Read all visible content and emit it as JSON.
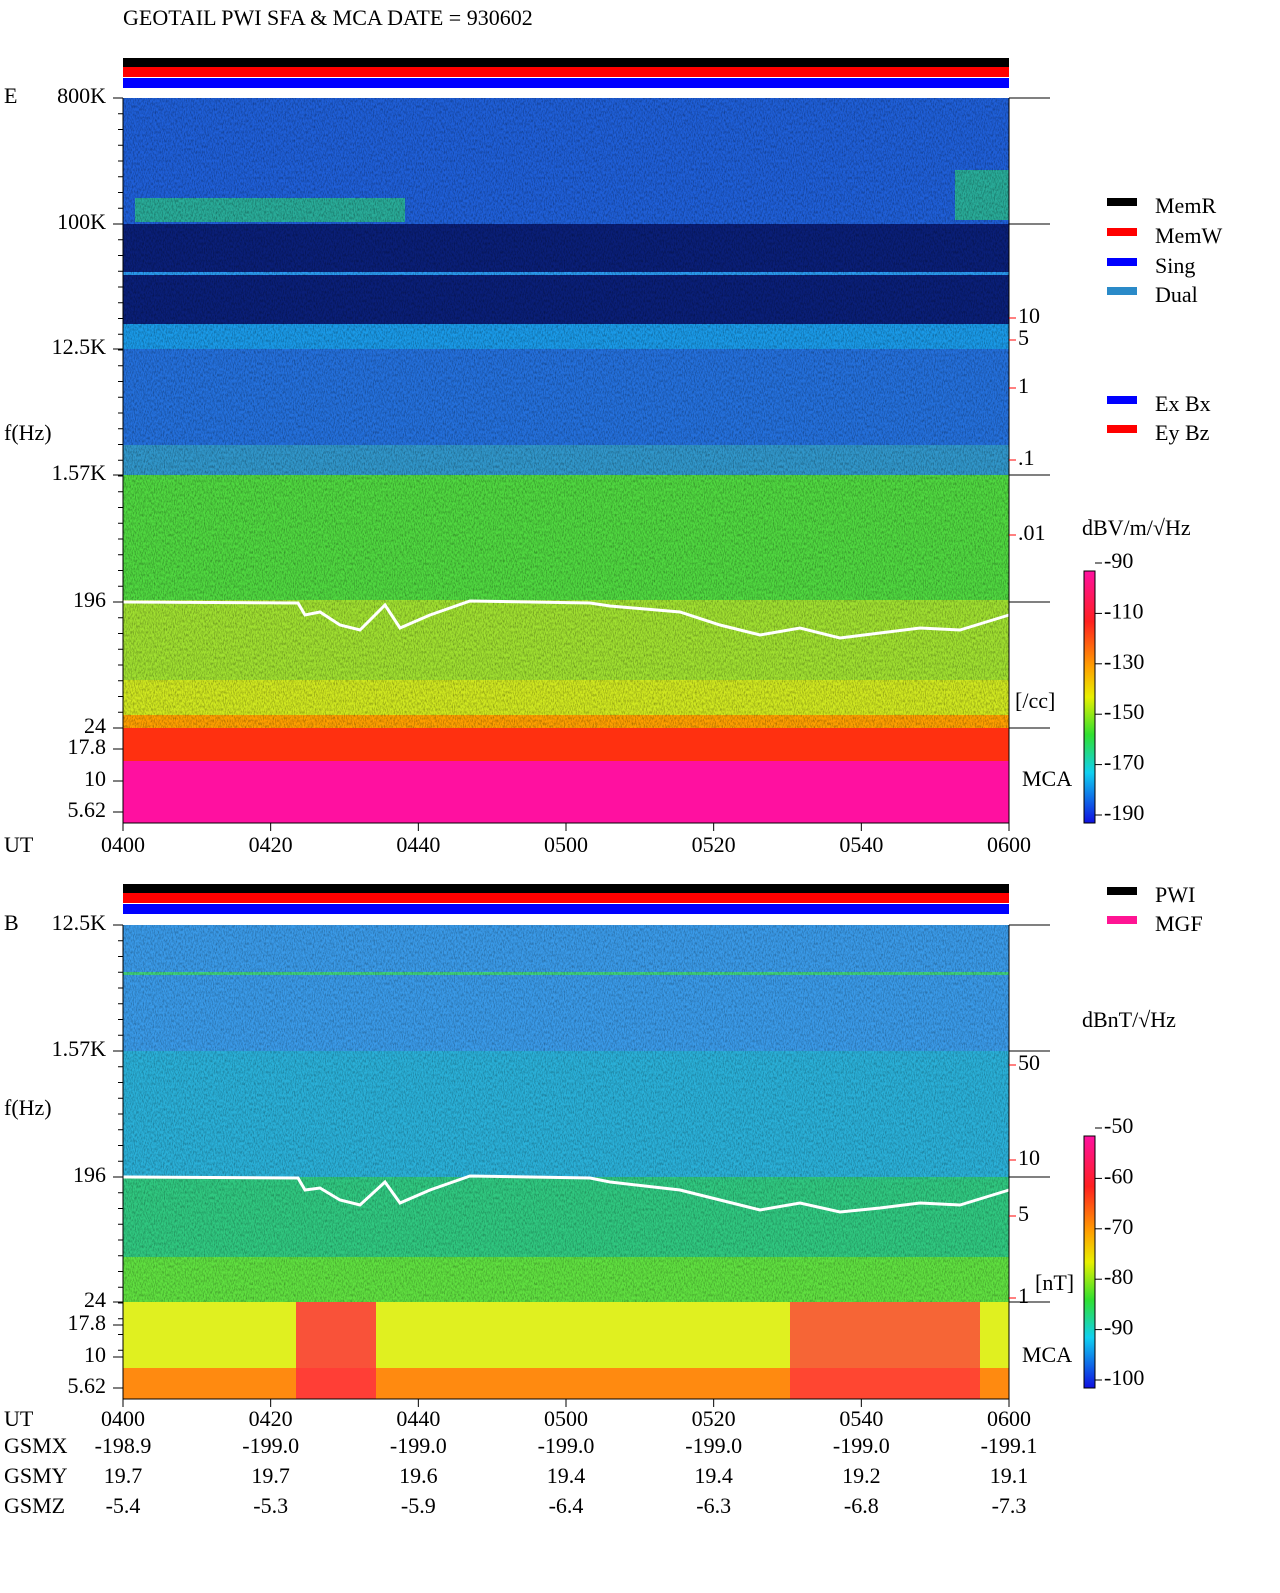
{
  "title": "GEOTAIL  PWI SFA & MCA  DATE = 930602",
  "panels": [
    {
      "label": "E",
      "y_axis_label": "f(Hz)",
      "x_axis_label": "UT",
      "freq_ticks": [
        "800K",
        "100K",
        "12.5K",
        "1.57K",
        "196",
        "24",
        "17.8",
        "10",
        "5.62"
      ],
      "time_ticks": [
        "0400",
        "0420",
        "0440",
        "0500",
        "0520",
        "0540",
        "0600"
      ],
      "right_ticks": [
        "10",
        "5",
        "1",
        ".1",
        ".01"
      ],
      "right_unit": "[/cc]",
      "mca_label": "MCA",
      "legend": [
        {
          "name": "MemR",
          "color": "#000000"
        },
        {
          "name": "MemW",
          "color": "#ff0000"
        },
        {
          "name": "Sing",
          "color": "#0000ff"
        },
        {
          "name": "Dual",
          "color": "#2a8ac8"
        }
      ],
      "legend2": [
        {
          "name": "Ex Bx",
          "color": "#0000ff"
        },
        {
          "name": "Ey Bz",
          "color": "#ff0000"
        }
      ],
      "colorbar_unit": "dBV/m/√Hz",
      "colorbar_ticks": [
        -90,
        -110,
        -130,
        -150,
        -170,
        -190
      ]
    },
    {
      "label": "B",
      "y_axis_label": "f(Hz)",
      "x_axis_label": "UT",
      "freq_ticks": [
        "12.5K",
        "1.57K",
        "196",
        "24",
        "17.8",
        "10",
        "5.62"
      ],
      "time_ticks": [
        "0400",
        "0420",
        "0440",
        "0500",
        "0520",
        "0540",
        "0600"
      ],
      "right_ticks": [
        "50",
        "10",
        "5",
        "1"
      ],
      "right_unit": "[nT]",
      "mca_label": "MCA",
      "legend": [
        {
          "name": "PWI",
          "color": "#000000"
        },
        {
          "name": "MGF",
          "color": "#ff1493"
        }
      ],
      "legend2": [],
      "colorbar_unit": "dBnT/√Hz",
      "colorbar_ticks": [
        -50,
        -60,
        -70,
        -80,
        -90,
        -100
      ]
    }
  ],
  "orbit": [
    {
      "label": "GSMX",
      "values": [
        "-198.9",
        "-199.0",
        "-199.0",
        "-199.0",
        "-199.0",
        "-199.0",
        "-199.1"
      ]
    },
    {
      "label": "GSMY",
      "values": [
        "19.7",
        "19.7",
        "19.6",
        "19.4",
        "19.4",
        "19.2",
        "19.1"
      ]
    },
    {
      "label": "GSMZ",
      "values": [
        "-5.4",
        "-5.3",
        "-5.9",
        "-6.4",
        "-6.3",
        "-6.8",
        "-7.3"
      ]
    }
  ]
}
